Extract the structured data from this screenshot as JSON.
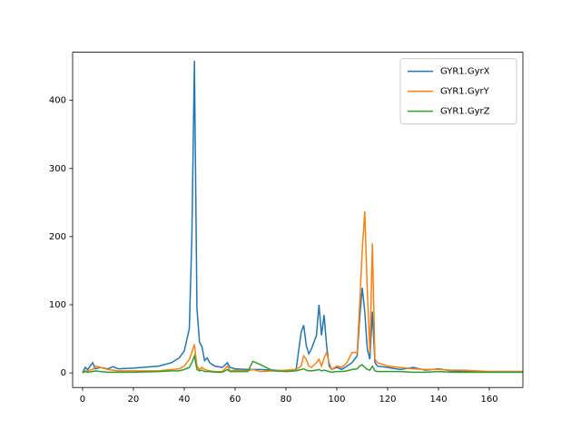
{
  "chart_data": {
    "type": "line",
    "x": [
      0,
      1,
      2,
      4,
      5,
      7,
      10,
      12,
      14,
      20,
      30,
      35,
      38,
      40,
      42,
      43,
      44,
      45,
      46,
      47,
      48,
      49,
      50,
      52,
      55,
      57,
      58,
      60,
      65,
      67,
      70,
      75,
      80,
      84,
      86,
      87,
      88,
      89,
      90,
      92,
      93,
      94,
      95,
      96,
      97,
      98,
      100,
      102,
      104,
      106,
      108,
      109,
      110,
      111,
      112,
      113,
      114,
      115,
      116,
      120,
      125,
      130,
      135,
      140,
      145,
      150,
      155,
      160,
      165,
      170,
      174
    ],
    "series": [
      {
        "name": "GYR1.GyrX",
        "color": "#1f77b4",
        "values": [
          0,
          8,
          5,
          15,
          6,
          8,
          6,
          9,
          6,
          7,
          10,
          15,
          22,
          32,
          65,
          200,
          458,
          95,
          45,
          38,
          18,
          22,
          15,
          10,
          8,
          15,
          8,
          6,
          5,
          5,
          5,
          4,
          3,
          5,
          60,
          70,
          40,
          28,
          35,
          55,
          100,
          55,
          85,
          40,
          10,
          5,
          8,
          5,
          10,
          15,
          25,
          80,
          125,
          90,
          35,
          20,
          90,
          15,
          10,
          8,
          5,
          8,
          4,
          6,
          3,
          2,
          2,
          2,
          2,
          2,
          2
        ]
      },
      {
        "name": "GYR1.GyrY",
        "color": "#ff7f0e",
        "values": [
          0,
          3,
          3,
          5,
          10,
          8,
          5,
          4,
          3,
          3,
          3,
          5,
          6,
          10,
          20,
          30,
          42,
          10,
          5,
          8,
          5,
          4,
          3,
          2,
          2,
          10,
          3,
          4,
          3,
          5,
          2,
          3,
          4,
          5,
          10,
          25,
          20,
          10,
          8,
          15,
          20,
          10,
          22,
          30,
          15,
          5,
          10,
          8,
          15,
          30,
          30,
          100,
          180,
          237,
          120,
          30,
          190,
          20,
          15,
          10,
          8,
          6,
          5,
          5,
          4,
          4,
          3,
          2,
          2,
          2,
          2
        ]
      },
      {
        "name": "GYR1.GyrZ",
        "color": "#2ca02c",
        "values": [
          0,
          2,
          1,
          2,
          3,
          2,
          1,
          1,
          1,
          1,
          2,
          3,
          3,
          5,
          8,
          15,
          25,
          5,
          3,
          4,
          2,
          2,
          2,
          1,
          1,
          5,
          2,
          2,
          2,
          17,
          12,
          3,
          2,
          3,
          5,
          6,
          4,
          3,
          3,
          4,
          5,
          3,
          4,
          3,
          2,
          1,
          2,
          2,
          3,
          5,
          6,
          10,
          12,
          8,
          5,
          4,
          10,
          3,
          2,
          2,
          2,
          1,
          1,
          2,
          1,
          1,
          1,
          1,
          1,
          1,
          1
        ]
      }
    ],
    "xlim": [
      -3.9,
      173.2
    ],
    "ylim": [
      -21.4,
      470.6
    ],
    "xticks": [
      0,
      20,
      40,
      60,
      80,
      100,
      120,
      140,
      160
    ],
    "yticks": [
      0,
      100,
      200,
      300,
      400
    ],
    "legend": "upper right"
  }
}
